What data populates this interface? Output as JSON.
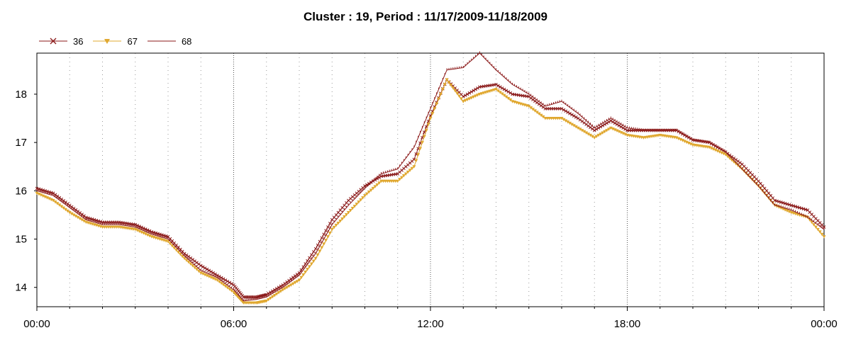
{
  "chart_data": {
    "type": "line",
    "title": "Cluster : 19, Period : 11/17/2009-11/18/2009",
    "xlabel": "",
    "ylabel": "",
    "x_tick_labels": [
      "00:00",
      "06:00",
      "12:00",
      "18:00",
      "00:00"
    ],
    "y_ticks": [
      14,
      15,
      16,
      17,
      18
    ],
    "xlim": [
      0,
      24
    ],
    "ylim": [
      13.6,
      18.85
    ],
    "grid": true,
    "legend_position": "top-left",
    "series": [
      {
        "name": "36",
        "color": "#8b1a1a",
        "marker": "x",
        "points": [
          [
            0,
            16.05
          ],
          [
            0.5,
            15.95
          ],
          [
            1,
            15.7
          ],
          [
            1.5,
            15.45
          ],
          [
            2,
            15.35
          ],
          [
            2.5,
            15.35
          ],
          [
            3,
            15.3
          ],
          [
            3.5,
            15.15
          ],
          [
            4,
            15.05
          ],
          [
            4.5,
            14.7
          ],
          [
            5,
            14.45
          ],
          [
            5.5,
            14.25
          ],
          [
            6,
            14.05
          ],
          [
            6.3,
            13.8
          ],
          [
            6.7,
            13.8
          ],
          [
            7,
            13.85
          ],
          [
            7.5,
            14.05
          ],
          [
            8,
            14.3
          ],
          [
            8.5,
            14.8
          ],
          [
            9,
            15.4
          ],
          [
            9.5,
            15.8
          ],
          [
            10,
            16.1
          ],
          [
            10.5,
            16.3
          ],
          [
            11,
            16.35
          ],
          [
            11.5,
            16.65
          ],
          [
            12,
            17.55
          ],
          [
            12.5,
            18.3
          ],
          [
            13,
            17.95
          ],
          [
            13.5,
            18.15
          ],
          [
            14,
            18.2
          ],
          [
            14.5,
            18.0
          ],
          [
            15,
            17.95
          ],
          [
            15.5,
            17.7
          ],
          [
            16,
            17.7
          ],
          [
            16.5,
            17.5
          ],
          [
            17,
            17.25
          ],
          [
            17.5,
            17.45
          ],
          [
            18,
            17.25
          ],
          [
            18.5,
            17.25
          ],
          [
            19,
            17.25
          ],
          [
            19.5,
            17.25
          ],
          [
            20,
            17.05
          ],
          [
            20.5,
            17.0
          ],
          [
            21,
            16.8
          ],
          [
            21.5,
            16.55
          ],
          [
            22,
            16.2
          ],
          [
            22.5,
            15.8
          ],
          [
            23,
            15.7
          ],
          [
            23.5,
            15.6
          ],
          [
            24,
            15.25
          ]
        ]
      },
      {
        "name": "67",
        "color": "#e0a830",
        "marker": "triangle-down",
        "points": [
          [
            0,
            15.95
          ],
          [
            0.5,
            15.8
          ],
          [
            1,
            15.55
          ],
          [
            1.5,
            15.35
          ],
          [
            2,
            15.25
          ],
          [
            2.5,
            15.25
          ],
          [
            3,
            15.2
          ],
          [
            3.5,
            15.05
          ],
          [
            4,
            14.95
          ],
          [
            4.5,
            14.6
          ],
          [
            5,
            14.3
          ],
          [
            5.5,
            14.15
          ],
          [
            6,
            13.9
          ],
          [
            6.3,
            13.68
          ],
          [
            6.7,
            13.68
          ],
          [
            7,
            13.72
          ],
          [
            7.5,
            13.95
          ],
          [
            8,
            14.15
          ],
          [
            8.5,
            14.6
          ],
          [
            9,
            15.2
          ],
          [
            9.5,
            15.55
          ],
          [
            10,
            15.9
          ],
          [
            10.5,
            16.2
          ],
          [
            11,
            16.2
          ],
          [
            11.5,
            16.5
          ],
          [
            12,
            17.5
          ],
          [
            12.5,
            18.3
          ],
          [
            13,
            17.85
          ],
          [
            13.5,
            18.0
          ],
          [
            14,
            18.1
          ],
          [
            14.5,
            17.85
          ],
          [
            15,
            17.75
          ],
          [
            15.5,
            17.5
          ],
          [
            16,
            17.5
          ],
          [
            16.5,
            17.3
          ],
          [
            17,
            17.1
          ],
          [
            17.5,
            17.3
          ],
          [
            18,
            17.15
          ],
          [
            18.5,
            17.1
          ],
          [
            19,
            17.15
          ],
          [
            19.5,
            17.1
          ],
          [
            20,
            16.95
          ],
          [
            20.5,
            16.9
          ],
          [
            21,
            16.75
          ],
          [
            21.5,
            16.45
          ],
          [
            22,
            16.1
          ],
          [
            22.5,
            15.7
          ],
          [
            23,
            15.55
          ],
          [
            23.5,
            15.45
          ],
          [
            24,
            15.05
          ]
        ]
      },
      {
        "name": "68",
        "color": "#8b1a1a",
        "marker": "tick",
        "points": [
          [
            0,
            16.0
          ],
          [
            0.5,
            15.9
          ],
          [
            1,
            15.65
          ],
          [
            1.5,
            15.4
          ],
          [
            2,
            15.3
          ],
          [
            2.5,
            15.3
          ],
          [
            3,
            15.25
          ],
          [
            3.5,
            15.1
          ],
          [
            4,
            15.0
          ],
          [
            4.5,
            14.65
          ],
          [
            5,
            14.35
          ],
          [
            5.5,
            14.2
          ],
          [
            6,
            13.95
          ],
          [
            6.3,
            13.72
          ],
          [
            6.7,
            13.75
          ],
          [
            7,
            13.8
          ],
          [
            7.5,
            14.0
          ],
          [
            8,
            14.25
          ],
          [
            8.5,
            14.7
          ],
          [
            9,
            15.3
          ],
          [
            9.5,
            15.7
          ],
          [
            10,
            16.05
          ],
          [
            10.5,
            16.35
          ],
          [
            11,
            16.45
          ],
          [
            11.5,
            16.9
          ],
          [
            12,
            17.7
          ],
          [
            12.5,
            18.5
          ],
          [
            13,
            18.55
          ],
          [
            13.5,
            18.85
          ],
          [
            14,
            18.5
          ],
          [
            14.5,
            18.2
          ],
          [
            15,
            18.0
          ],
          [
            15.5,
            17.75
          ],
          [
            16,
            17.85
          ],
          [
            16.5,
            17.6
          ],
          [
            17,
            17.3
          ],
          [
            17.5,
            17.5
          ],
          [
            18,
            17.3
          ],
          [
            18.5,
            17.25
          ],
          [
            19,
            17.25
          ],
          [
            19.5,
            17.25
          ],
          [
            20,
            17.05
          ],
          [
            20.5,
            17.0
          ],
          [
            21,
            16.8
          ],
          [
            21.5,
            16.45
          ],
          [
            22,
            16.1
          ],
          [
            22.5,
            15.7
          ],
          [
            23,
            15.6
          ],
          [
            23.5,
            15.45
          ],
          [
            24,
            15.2
          ]
        ]
      }
    ]
  }
}
